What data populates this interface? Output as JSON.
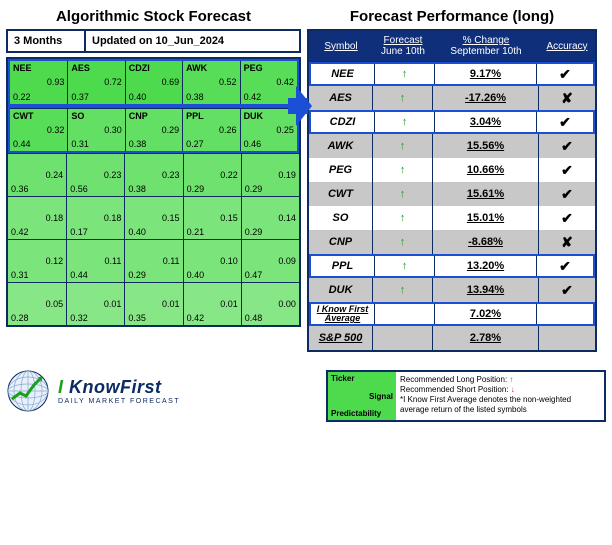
{
  "colors": {
    "headerBlue": "#0f2f7a",
    "border": "#0b2b61",
    "highlight": "#1a4fd6",
    "greenStrong": "#4ddb4d",
    "green2": "#57dd57",
    "green3": "#63df63",
    "green4": "#6fe16f",
    "green5": "#7be47b",
    "green6": "#87e787",
    "rowAlt": "#c8c8c8",
    "rowBase": "#ffffff"
  },
  "left": {
    "title": "Algorithmic Stock Forecast",
    "period": "3 Months",
    "updated": "Updated on 10_Jun_2024",
    "heatmap": [
      [
        {
          "t": "NEE",
          "s": "0.93",
          "p": "0.22",
          "c": "greenStrong"
        },
        {
          "t": "AES",
          "s": "0.72",
          "p": "0.37",
          "c": "greenStrong"
        },
        {
          "t": "CDZI",
          "s": "0.69",
          "p": "0.40",
          "c": "greenStrong"
        },
        {
          "t": "AWK",
          "s": "0.52",
          "p": "0.38",
          "c": "green2"
        },
        {
          "t": "PEG",
          "s": "0.42",
          "p": "0.42",
          "c": "green2"
        }
      ],
      [
        {
          "t": "CWT",
          "s": "0.32",
          "p": "0.44",
          "c": "green2"
        },
        {
          "t": "SO",
          "s": "0.30",
          "p": "0.31",
          "c": "green3"
        },
        {
          "t": "CNP",
          "s": "0.29",
          "p": "0.38",
          "c": "green3"
        },
        {
          "t": "PPL",
          "s": "0.26",
          "p": "0.27",
          "c": "green3"
        },
        {
          "t": "DUK",
          "s": "0.25",
          "p": "0.46",
          "c": "green3"
        }
      ],
      [
        {
          "t": "",
          "s": "0.24",
          "p": "0.36",
          "c": "green4"
        },
        {
          "t": "",
          "s": "0.23",
          "p": "0.56",
          "c": "green4"
        },
        {
          "t": "",
          "s": "0.23",
          "p": "0.38",
          "c": "green4"
        },
        {
          "t": "",
          "s": "0.22",
          "p": "0.29",
          "c": "green4"
        },
        {
          "t": "",
          "s": "0.19",
          "p": "0.29",
          "c": "green4"
        }
      ],
      [
        {
          "t": "",
          "s": "0.18",
          "p": "0.42",
          "c": "green5"
        },
        {
          "t": "",
          "s": "0.18",
          "p": "0.17",
          "c": "green5"
        },
        {
          "t": "",
          "s": "0.15",
          "p": "0.40",
          "c": "green5"
        },
        {
          "t": "",
          "s": "0.15",
          "p": "0.21",
          "c": "green5"
        },
        {
          "t": "",
          "s": "0.14",
          "p": "0.29",
          "c": "green5"
        }
      ],
      [
        {
          "t": "",
          "s": "0.12",
          "p": "0.31",
          "c": "green5"
        },
        {
          "t": "",
          "s": "0.11",
          "p": "0.44",
          "c": "green5"
        },
        {
          "t": "",
          "s": "0.11",
          "p": "0.29",
          "c": "green5"
        },
        {
          "t": "",
          "s": "0.10",
          "p": "0.40",
          "c": "green5"
        },
        {
          "t": "",
          "s": "0.09",
          "p": "0.47",
          "c": "green5"
        }
      ],
      [
        {
          "t": "",
          "s": "0.05",
          "p": "0.28",
          "c": "green6"
        },
        {
          "t": "",
          "s": "0.01",
          "p": "0.32",
          "c": "green6"
        },
        {
          "t": "",
          "s": "0.01",
          "p": "0.35",
          "c": "green6"
        },
        {
          "t": "",
          "s": "0.01",
          "p": "0.42",
          "c": "green6"
        },
        {
          "t": "",
          "s": "0.00",
          "p": "0.48",
          "c": "green6"
        }
      ]
    ]
  },
  "right": {
    "title": "Forecast Performance (long)",
    "head": {
      "sym": "Symbol",
      "fc1": "Forecast",
      "fc2": "June 10th",
      "chg1": "% Change",
      "chg2": "September 10th",
      "acc": "Accuracy"
    },
    "rows": [
      {
        "sym": "NEE",
        "fc": "up",
        "chg": "9.17%",
        "acc": "✔",
        "hl": true,
        "alt": false
      },
      {
        "sym": "AES",
        "fc": "up",
        "chg": "-17.26%",
        "acc": "✘",
        "hl": false,
        "alt": true
      },
      {
        "sym": "CDZI",
        "fc": "up",
        "chg": "3.04%",
        "acc": "✔",
        "hl": true,
        "alt": false
      },
      {
        "sym": "AWK",
        "fc": "up",
        "chg": "15.56%",
        "acc": "✔",
        "hl": false,
        "alt": true
      },
      {
        "sym": "PEG",
        "fc": "up",
        "chg": "10.66%",
        "acc": "✔",
        "hl": false,
        "alt": false
      },
      {
        "sym": "CWT",
        "fc": "up",
        "chg": "15.61%",
        "acc": "✔",
        "hl": false,
        "alt": true
      },
      {
        "sym": "SO",
        "fc": "up",
        "chg": "15.01%",
        "acc": "✔",
        "hl": false,
        "alt": false
      },
      {
        "sym": "CNP",
        "fc": "up",
        "chg": "-8.68%",
        "acc": "✘",
        "hl": false,
        "alt": true
      },
      {
        "sym": "PPL",
        "fc": "up",
        "chg": "13.20%",
        "acc": "✔",
        "hl": true,
        "alt": false
      },
      {
        "sym": "DUK",
        "fc": "up",
        "chg": "13.94%",
        "acc": "✔",
        "hl": false,
        "alt": true
      }
    ],
    "avg": {
      "sym": "I Know First Average",
      "chg": "7.02%"
    },
    "sp": {
      "sym": "S&P 500",
      "chg": "2.78%"
    }
  },
  "legend": {
    "ticker": "Ticker",
    "signal": "Signal",
    "pred": "Predictability",
    "long": "Recommended Long Position:",
    "short": "Recommended Short Position:",
    "note": "*I Know First Average denotes the non-weighted average return of the listed symbols"
  },
  "logo": {
    "brand": "I KnowFirst",
    "tag": "DAILY MARKET FORECAST"
  }
}
